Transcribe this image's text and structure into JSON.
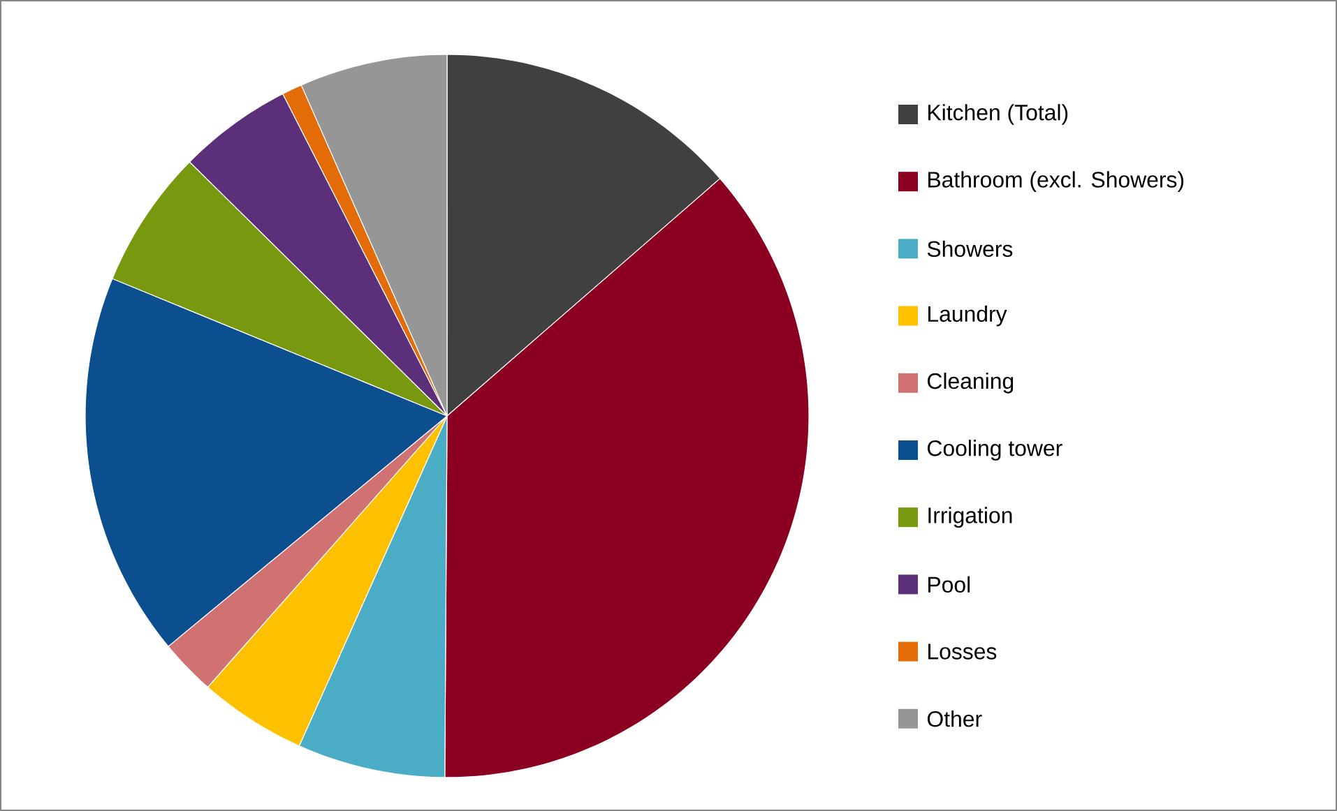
{
  "chart_data": {
    "type": "pie",
    "categories": [
      "Kitchen (Total)",
      "Bathroom (excl. Showers)",
      "Showers",
      "Laundry",
      "Cleaning",
      "Cooling tower",
      "Irrigation",
      "Pool",
      "Losses",
      "Other"
    ],
    "values": [
      13.6,
      36.5,
      6.6,
      4.8,
      2.5,
      17.2,
      6.2,
      5.1,
      0.9,
      6.6
    ],
    "colors": [
      "#404040",
      "#8b0021",
      "#4bacc6",
      "#ffc000",
      "#d07272",
      "#0b4f8f",
      "#77980f",
      "#5b2f7a",
      "#e36c09",
      "#969696"
    ],
    "legend": "right"
  }
}
